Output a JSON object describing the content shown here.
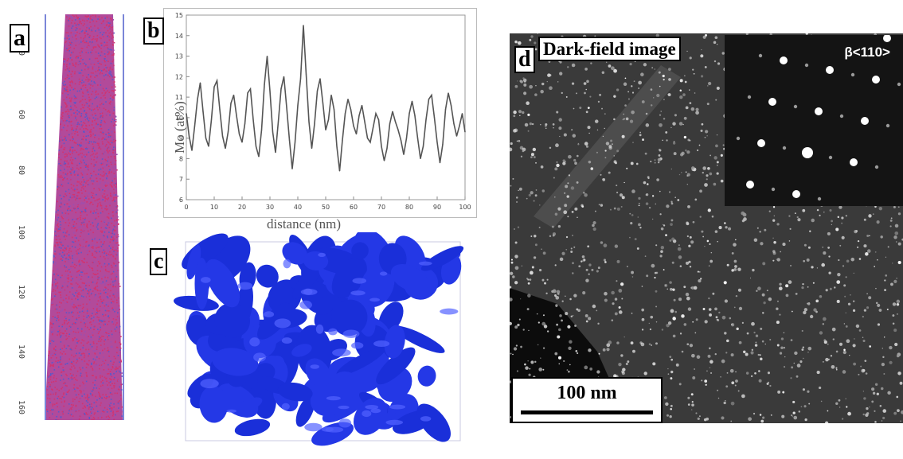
{
  "panels": {
    "a": {
      "label": "a",
      "tick_labels": [
        "40",
        "60",
        "80",
        "100",
        "120",
        "140",
        "160"
      ]
    },
    "b": {
      "label": "b"
    },
    "c": {
      "label": "c"
    },
    "d": {
      "label": "d",
      "title": "Dark-field image",
      "inset_label": "β<110>",
      "scale_bar_label": "100 nm"
    }
  },
  "chart_data": {
    "type": "line",
    "xlabel": "distance (nm)",
    "ylabel": "Mo (at%)",
    "xlim": [
      0,
      100
    ],
    "ylim": [
      6,
      15
    ],
    "x_ticks": [
      0,
      10,
      20,
      30,
      40,
      50,
      60,
      70,
      80,
      90,
      100
    ],
    "y_ticks": [
      6,
      7,
      8,
      9,
      10,
      11,
      12,
      13,
      14,
      15
    ],
    "grid": false,
    "series": [
      {
        "color": "#555555",
        "x": [
          0,
          1,
          2,
          3,
          4,
          5,
          6,
          7,
          8,
          9,
          10,
          11,
          12,
          13,
          14,
          15,
          16,
          17,
          18,
          19,
          20,
          21,
          22,
          23,
          24,
          25,
          26,
          27,
          28,
          29,
          30,
          31,
          32,
          33,
          34,
          35,
          36,
          37,
          38,
          39,
          40,
          41,
          42,
          43,
          44,
          45,
          46,
          47,
          48,
          49,
          50,
          51,
          52,
          53,
          54,
          55,
          56,
          57,
          58,
          59,
          60,
          61,
          62,
          63,
          64,
          65,
          66,
          67,
          68,
          69,
          70,
          71,
          72,
          73,
          74,
          75,
          76,
          77,
          78,
          79,
          80,
          81,
          82,
          83,
          84,
          85,
          86,
          87,
          88,
          89,
          90,
          91,
          92,
          93,
          94,
          95,
          96,
          97,
          98,
          99,
          100
        ],
        "values": [
          10.2,
          9.1,
          8.4,
          9.6,
          10.9,
          11.7,
          10.3,
          9.0,
          8.6,
          9.9,
          11.5,
          11.8,
          10.4,
          9.1,
          8.5,
          9.3,
          10.7,
          11.1,
          10.1,
          9.2,
          8.8,
          9.7,
          11.2,
          11.4,
          9.9,
          8.6,
          8.1,
          9.4,
          11.6,
          13.0,
          11.3,
          9.3,
          8.3,
          9.8,
          11.4,
          12.0,
          10.5,
          8.9,
          7.5,
          8.8,
          10.6,
          11.9,
          14.5,
          12.1,
          9.8,
          8.5,
          9.7,
          11.3,
          11.9,
          10.7,
          9.4,
          9.9,
          11.1,
          10.4,
          8.6,
          7.4,
          8.9,
          10.2,
          10.9,
          10.4,
          9.6,
          9.2,
          10.1,
          10.6,
          9.8,
          9.0,
          8.8,
          9.5,
          10.2,
          9.9,
          8.6,
          7.9,
          8.5,
          9.7,
          10.3,
          9.8,
          9.4,
          8.9,
          8.2,
          9.0,
          10.2,
          10.8,
          10.1,
          9.0,
          8.0,
          8.6,
          9.9,
          10.9,
          11.1,
          10.0,
          8.8,
          7.8,
          8.7,
          10.4,
          11.2,
          10.6,
          9.7,
          9.1,
          9.6,
          10.2,
          9.3
        ]
      }
    ]
  }
}
